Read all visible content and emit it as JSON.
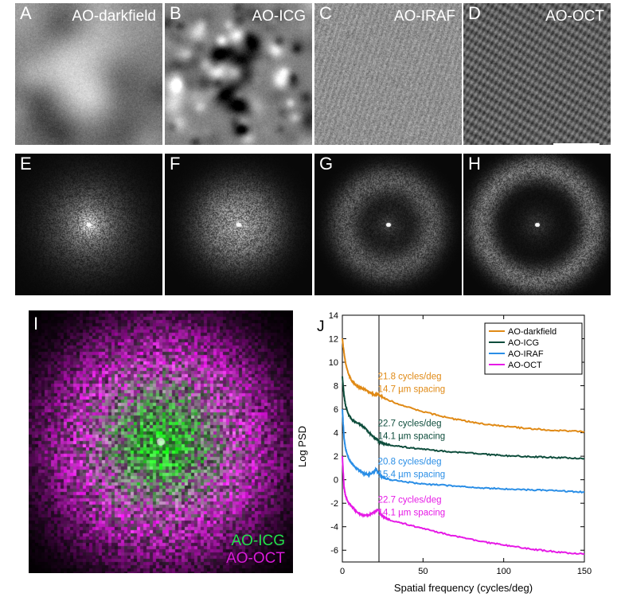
{
  "panels": [
    {
      "label": "A",
      "name": "AO-darkfield"
    },
    {
      "label": "B",
      "name": "AO-ICG"
    },
    {
      "label": "C",
      "name": "AO-IRAF"
    },
    {
      "label": "D",
      "name": "AO-OCT"
    },
    {
      "label": "E",
      "name": ""
    },
    {
      "label": "F",
      "name": ""
    },
    {
      "label": "G",
      "name": ""
    },
    {
      "label": "H",
      "name": ""
    }
  ],
  "panel_i": {
    "label": "I",
    "overlay": [
      {
        "text": "AO-ICG",
        "color": "#22e04a"
      },
      {
        "text": "AO-OCT",
        "color": "#d81ad8"
      }
    ]
  },
  "chart_data": {
    "type": "line",
    "panel_label": "J",
    "xlabel": "Spatial frequency (cycles/deg)",
    "ylabel": "Log PSD",
    "xlim": [
      0,
      150
    ],
    "ylim": [
      -7,
      14
    ],
    "xticks": [
      0,
      50,
      100,
      150
    ],
    "yticks": [
      -6,
      -4,
      -2,
      0,
      2,
      4,
      6,
      8,
      10,
      12,
      14
    ],
    "grid": false,
    "legend_position": "top-right",
    "vline_x": 22.7,
    "series": [
      {
        "name": "AO-darkfield",
        "color": "#e08a16",
        "x": [
          0,
          1,
          2,
          4,
          6,
          8,
          10,
          12,
          14,
          16,
          18,
          20,
          21.8,
          23,
          25,
          30,
          40,
          50,
          60,
          70,
          80,
          90,
          100,
          110,
          120,
          130,
          140,
          150
        ],
        "y": [
          12.0,
          10.8,
          9.9,
          8.9,
          8.4,
          8.1,
          7.9,
          7.8,
          7.65,
          7.5,
          7.35,
          7.2,
          7.25,
          7.2,
          7.0,
          6.7,
          6.2,
          5.8,
          5.45,
          5.15,
          4.9,
          4.7,
          4.55,
          4.42,
          4.32,
          4.22,
          4.15,
          4.1
        ]
      },
      {
        "name": "AO-ICG",
        "color": "#0e4d3c",
        "x": [
          0,
          1,
          2,
          4,
          6,
          8,
          10,
          12,
          14,
          16,
          18,
          20,
          22,
          22.7,
          24,
          26,
          30,
          40,
          50,
          60,
          70,
          80,
          90,
          100,
          110,
          120,
          130,
          140,
          150
        ],
        "y": [
          8.8,
          7.2,
          6.3,
          5.5,
          5.1,
          4.9,
          4.8,
          4.6,
          4.4,
          4.1,
          3.8,
          3.55,
          3.4,
          3.25,
          3.15,
          3.05,
          2.95,
          2.75,
          2.6,
          2.45,
          2.35,
          2.25,
          2.15,
          2.05,
          2.0,
          1.95,
          1.9,
          1.85,
          1.8
        ]
      },
      {
        "name": "AO-IRAF",
        "color": "#2a8ee6",
        "x": [
          0,
          1,
          2,
          4,
          6,
          8,
          10,
          12,
          14,
          16,
          18,
          20,
          20.8,
          22,
          24,
          26,
          30,
          40,
          50,
          60,
          70,
          80,
          90,
          100,
          110,
          120,
          130,
          140,
          150
        ],
        "y": [
          6.0,
          3.6,
          2.6,
          1.8,
          1.35,
          1.05,
          0.85,
          0.65,
          0.5,
          0.45,
          0.5,
          0.75,
          0.95,
          0.65,
          0.3,
          0.15,
          0.0,
          -0.2,
          -0.35,
          -0.45,
          -0.55,
          -0.65,
          -0.72,
          -0.78,
          -0.83,
          -0.88,
          -0.93,
          -0.98,
          -1.05
        ]
      },
      {
        "name": "AO-OCT",
        "color": "#e61ae6",
        "x": [
          0,
          1,
          2,
          4,
          6,
          8,
          10,
          12,
          14,
          16,
          18,
          20,
          22,
          22.7,
          24,
          26,
          30,
          40,
          50,
          60,
          70,
          80,
          90,
          100,
          110,
          120,
          130,
          140,
          150
        ],
        "y": [
          2.0,
          -0.6,
          -1.4,
          -2.0,
          -2.3,
          -2.6,
          -2.85,
          -3.0,
          -3.05,
          -3.0,
          -2.9,
          -2.75,
          -2.55,
          -2.6,
          -3.0,
          -3.2,
          -3.45,
          -3.8,
          -4.15,
          -4.5,
          -4.8,
          -5.1,
          -5.35,
          -5.55,
          -5.75,
          -5.95,
          -6.1,
          -6.25,
          -6.3
        ]
      }
    ],
    "annotations": [
      {
        "lines": [
          "21.8 cycles/deg",
          "14.7 µm spacing"
        ],
        "color": "#e08a16",
        "x": 22,
        "y": 8.55
      },
      {
        "lines": [
          "22.7 cycles/deg",
          "14.1 µm spacing"
        ],
        "color": "#0e4d3c",
        "x": 22,
        "y": 4.55
      },
      {
        "lines": [
          "20.8 cycles/deg",
          "15.4 µm spacing"
        ],
        "color": "#2a8ee6",
        "x": 22,
        "y": 1.3
      },
      {
        "lines": [
          "22.7 cycles/deg",
          "14.1 µm spacing"
        ],
        "color": "#e61ae6",
        "x": 22,
        "y": -1.95
      }
    ]
  }
}
